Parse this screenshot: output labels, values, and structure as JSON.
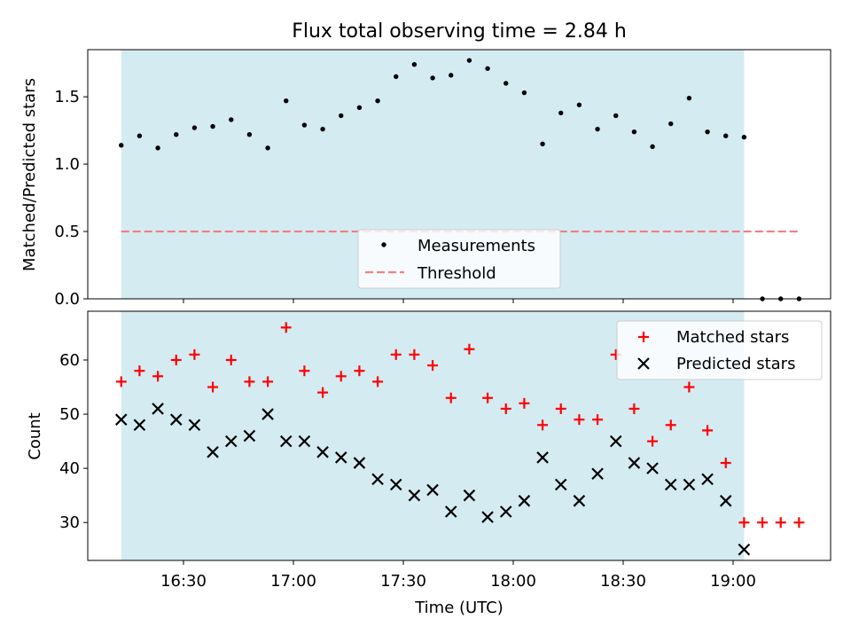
{
  "chart_data": [
    {
      "type": "scatter",
      "title": "Flux total observing time = 2.84 h",
      "xlabel": "",
      "ylabel": "Matched/Predicted stars",
      "ylim": [
        0,
        1.85
      ],
      "yticks": [
        "0.0",
        "0.5",
        "1.0",
        "1.5"
      ],
      "ytick_values": [
        0,
        0.5,
        1.0,
        1.5
      ],
      "shaded_region": {
        "start": "16:13",
        "end": "19:03",
        "color": "#add8e6"
      },
      "legend_position": "lower-center",
      "series": [
        {
          "name": "Measurements",
          "marker": "dot",
          "color": "#000000",
          "x": [
            "16:13",
            "16:18",
            "16:23",
            "16:28",
            "16:33",
            "16:38",
            "16:43",
            "16:48",
            "16:53",
            "16:58",
            "17:03",
            "17:08",
            "17:13",
            "17:18",
            "17:23",
            "17:28",
            "17:33",
            "17:38",
            "17:43",
            "17:48",
            "17:53",
            "17:58",
            "18:03",
            "18:08",
            "18:13",
            "18:18",
            "18:23",
            "18:28",
            "18:33",
            "18:38",
            "18:43",
            "18:48",
            "18:53",
            "18:58",
            "19:03",
            "19:08",
            "19:13",
            "19:18"
          ],
          "y": [
            1.14,
            1.21,
            1.12,
            1.22,
            1.27,
            1.28,
            1.33,
            1.22,
            1.12,
            1.47,
            1.29,
            1.26,
            1.36,
            1.42,
            1.47,
            1.65,
            1.74,
            1.64,
            1.66,
            1.77,
            1.71,
            1.6,
            1.53,
            1.15,
            1.38,
            1.44,
            1.26,
            1.36,
            1.24,
            1.13,
            1.3,
            1.49,
            1.24,
            1.21,
            1.2,
            0.0,
            0.0,
            0.0
          ]
        },
        {
          "name": "Threshold",
          "style": "dashed",
          "color": "#f08080",
          "x": [
            "16:13",
            "19:18"
          ],
          "y": [
            0.5,
            0.5
          ]
        }
      ]
    },
    {
      "type": "scatter",
      "title": "",
      "xlabel": "Time (UTC)",
      "ylabel": "Count",
      "ylim": [
        23,
        69
      ],
      "yticks": [
        "30",
        "40",
        "50",
        "60"
      ],
      "ytick_values": [
        30,
        40,
        50,
        60
      ],
      "xticks": [
        "16:30",
        "17:00",
        "17:30",
        "18:00",
        "18:30",
        "19:00"
      ],
      "shaded_region": {
        "start": "16:13",
        "end": "19:03",
        "color": "#add8e6"
      },
      "legend_position": "top-right",
      "series": [
        {
          "name": "Matched stars",
          "marker": "plus",
          "color": "#ff0000",
          "x": [
            "16:13",
            "16:18",
            "16:23",
            "16:28",
            "16:33",
            "16:38",
            "16:43",
            "16:48",
            "16:53",
            "16:58",
            "17:03",
            "17:08",
            "17:13",
            "17:18",
            "17:23",
            "17:28",
            "17:33",
            "17:38",
            "17:43",
            "17:48",
            "17:53",
            "17:58",
            "18:03",
            "18:08",
            "18:13",
            "18:18",
            "18:23",
            "18:28",
            "18:33",
            "18:38",
            "18:43",
            "18:48",
            "18:53",
            "18:58",
            "19:03",
            "19:08",
            "19:13",
            "19:18"
          ],
          "y": [
            56,
            58,
            57,
            60,
            61,
            55,
            60,
            56,
            56,
            66,
            58,
            54,
            57,
            58,
            56,
            61,
            61,
            59,
            53,
            62,
            53,
            51,
            52,
            48,
            51,
            49,
            49,
            61,
            51,
            45,
            48,
            55,
            47,
            41,
            30,
            30,
            30,
            30
          ]
        },
        {
          "name": "Predicted stars",
          "marker": "x",
          "color": "#000000",
          "x": [
            "16:13",
            "16:18",
            "16:23",
            "16:28",
            "16:33",
            "16:38",
            "16:43",
            "16:48",
            "16:53",
            "16:58",
            "17:03",
            "17:08",
            "17:13",
            "17:18",
            "17:23",
            "17:28",
            "17:33",
            "17:38",
            "17:43",
            "17:48",
            "17:53",
            "17:58",
            "18:03",
            "18:08",
            "18:13",
            "18:18",
            "18:23",
            "18:28",
            "18:33",
            "18:38",
            "18:43",
            "18:48",
            "18:53",
            "18:58",
            "19:03"
          ],
          "y": [
            49,
            48,
            51,
            49,
            48,
            43,
            45,
            46,
            50,
            45,
            45,
            43,
            42,
            41,
            38,
            37,
            35,
            36,
            32,
            35,
            31,
            32,
            34,
            42,
            37,
            34,
            39,
            45,
            41,
            40,
            37,
            37,
            38,
            34,
            25
          ]
        }
      ]
    }
  ]
}
